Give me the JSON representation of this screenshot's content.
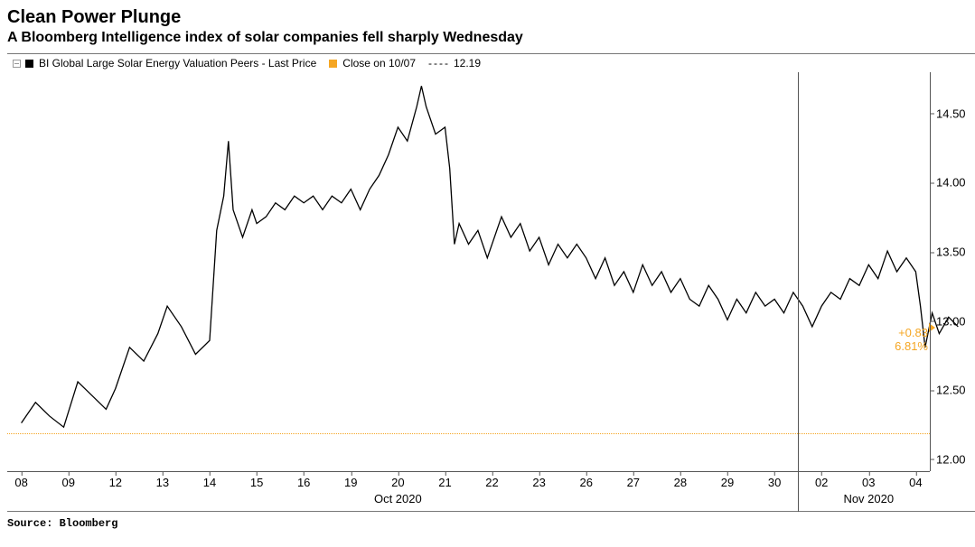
{
  "title": "Clean Power Plunge",
  "subtitle": "A Bloomberg Intelligence index of solar companies fell sharply Wednesday",
  "source": "Source: Bloomberg",
  "legend": {
    "series_label": "BI Global Large Solar Energy Valuation Peers - Last Price",
    "ref_label": "Close on 10/07",
    "ref_value": "12.19"
  },
  "callout": {
    "delta": "+0.83",
    "pct": "6.81%"
  },
  "chart": {
    "type": "line",
    "background_color": "#ffffff",
    "line_color": "#000000",
    "line_width": 1.3,
    "ref_line_color": "#f5a623",
    "ref_line_value": 12.19,
    "grid_color": "#555555",
    "ylim": [
      11.9,
      14.8
    ],
    "yticks": [
      12.0,
      12.5,
      13.0,
      13.5,
      14.0,
      14.5
    ],
    "ytick_labels": [
      "12.00",
      "12.50",
      "13.00",
      "13.50",
      "14.00",
      "14.50"
    ],
    "x_labels": [
      "08",
      "09",
      "12",
      "13",
      "14",
      "15",
      "16",
      "19",
      "20",
      "21",
      "22",
      "23",
      "26",
      "27",
      "28",
      "29",
      "30",
      "02",
      "03",
      "04"
    ],
    "x_months": [
      "Oct 2020",
      "Nov 2020"
    ],
    "month_split_index": 17,
    "series": [
      [
        0.0,
        12.25
      ],
      [
        0.3,
        12.4
      ],
      [
        0.6,
        12.3
      ],
      [
        0.9,
        12.22
      ],
      [
        1.2,
        12.55
      ],
      [
        1.5,
        12.45
      ],
      [
        1.8,
        12.35
      ],
      [
        2.0,
        12.5
      ],
      [
        2.3,
        12.8
      ],
      [
        2.6,
        12.7
      ],
      [
        2.9,
        12.9
      ],
      [
        3.1,
        13.1
      ],
      [
        3.4,
        12.95
      ],
      [
        3.7,
        12.75
      ],
      [
        4.0,
        12.85
      ],
      [
        4.15,
        13.65
      ],
      [
        4.3,
        13.9
      ],
      [
        4.4,
        14.3
      ],
      [
        4.5,
        13.8
      ],
      [
        4.7,
        13.6
      ],
      [
        4.9,
        13.8
      ],
      [
        5.0,
        13.7
      ],
      [
        5.2,
        13.75
      ],
      [
        5.4,
        13.85
      ],
      [
        5.6,
        13.8
      ],
      [
        5.8,
        13.9
      ],
      [
        6.0,
        13.85
      ],
      [
        6.2,
        13.9
      ],
      [
        6.4,
        13.8
      ],
      [
        6.6,
        13.9
      ],
      [
        6.8,
        13.85
      ],
      [
        7.0,
        13.95
      ],
      [
        7.2,
        13.8
      ],
      [
        7.4,
        13.95
      ],
      [
        7.6,
        14.05
      ],
      [
        7.8,
        14.2
      ],
      [
        8.0,
        14.4
      ],
      [
        8.2,
        14.3
      ],
      [
        8.4,
        14.55
      ],
      [
        8.5,
        14.7
      ],
      [
        8.6,
        14.55
      ],
      [
        8.8,
        14.35
      ],
      [
        9.0,
        14.4
      ],
      [
        9.1,
        14.1
      ],
      [
        9.2,
        13.55
      ],
      [
        9.3,
        13.7
      ],
      [
        9.5,
        13.55
      ],
      [
        9.7,
        13.65
      ],
      [
        9.9,
        13.45
      ],
      [
        10.0,
        13.55
      ],
      [
        10.2,
        13.75
      ],
      [
        10.4,
        13.6
      ],
      [
        10.6,
        13.7
      ],
      [
        10.8,
        13.5
      ],
      [
        11.0,
        13.6
      ],
      [
        11.2,
        13.4
      ],
      [
        11.4,
        13.55
      ],
      [
        11.6,
        13.45
      ],
      [
        11.8,
        13.55
      ],
      [
        12.0,
        13.45
      ],
      [
        12.2,
        13.3
      ],
      [
        12.4,
        13.45
      ],
      [
        12.6,
        13.25
      ],
      [
        12.8,
        13.35
      ],
      [
        13.0,
        13.2
      ],
      [
        13.2,
        13.4
      ],
      [
        13.4,
        13.25
      ],
      [
        13.6,
        13.35
      ],
      [
        13.8,
        13.2
      ],
      [
        14.0,
        13.3
      ],
      [
        14.2,
        13.15
      ],
      [
        14.4,
        13.1
      ],
      [
        14.6,
        13.25
      ],
      [
        14.8,
        13.15
      ],
      [
        15.0,
        13.0
      ],
      [
        15.2,
        13.15
      ],
      [
        15.4,
        13.05
      ],
      [
        15.6,
        13.2
      ],
      [
        15.8,
        13.1
      ],
      [
        16.0,
        13.15
      ],
      [
        16.2,
        13.05
      ],
      [
        16.4,
        13.2
      ],
      [
        16.6,
        13.1
      ],
      [
        16.8,
        12.95
      ],
      [
        17.0,
        13.1
      ],
      [
        17.2,
        13.2
      ],
      [
        17.4,
        13.15
      ],
      [
        17.6,
        13.3
      ],
      [
        17.8,
        13.25
      ],
      [
        18.0,
        13.4
      ],
      [
        18.2,
        13.3
      ],
      [
        18.4,
        13.5
      ],
      [
        18.6,
        13.35
      ],
      [
        18.8,
        13.45
      ],
      [
        19.0,
        13.35
      ],
      [
        19.1,
        13.1
      ],
      [
        19.2,
        12.8
      ],
      [
        19.35,
        13.05
      ],
      [
        19.5,
        12.9
      ],
      [
        19.7,
        13.02
      ],
      [
        19.9,
        12.95
      ]
    ]
  }
}
